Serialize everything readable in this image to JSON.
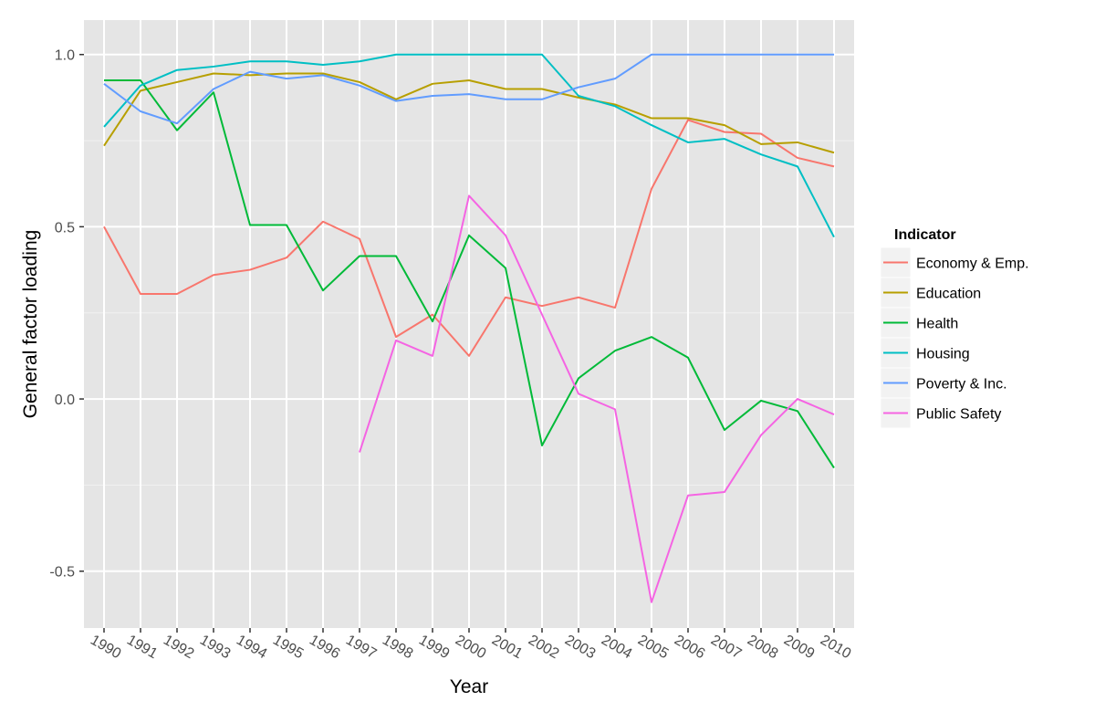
{
  "chart_data": {
    "type": "line",
    "title": "",
    "xlabel": "Year",
    "ylabel": "General factor loading",
    "x": [
      "1990",
      "1991",
      "1992",
      "1993",
      "1994",
      "1995",
      "1996",
      "1997",
      "1998",
      "1999",
      "2000",
      "2001",
      "2002",
      "2003",
      "2004",
      "2005",
      "2006",
      "2007",
      "2008",
      "2009",
      "2010"
    ],
    "xlim": [
      1989.45,
      2010.55
    ],
    "ylim": [
      -0.665,
      1.1
    ],
    "yticks": [
      -0.5,
      0.0,
      0.5,
      1.0
    ],
    "ytick_labels": [
      "-0.5",
      "0.0",
      "0.5",
      "1.0"
    ],
    "grid": true,
    "legend": {
      "title": "Indicator",
      "position": "right"
    },
    "series": [
      {
        "name": "Economy & Emp.",
        "color": "#F8766D",
        "values": [
          0.5,
          0.305,
          0.305,
          0.36,
          0.375,
          0.41,
          0.515,
          0.465,
          0.18,
          0.245,
          0.125,
          0.295,
          0.27,
          0.295,
          0.265,
          0.61,
          0.81,
          0.775,
          0.77,
          0.7,
          0.675
        ]
      },
      {
        "name": "Education",
        "color": "#B79F00",
        "values": [
          0.735,
          0.895,
          0.92,
          0.945,
          0.94,
          0.945,
          0.945,
          0.92,
          0.87,
          0.915,
          0.925,
          0.9,
          0.9,
          0.875,
          0.855,
          0.815,
          0.815,
          0.795,
          0.74,
          0.745,
          0.715
        ]
      },
      {
        "name": "Health",
        "color": "#00BA38",
        "values": [
          0.925,
          0.925,
          0.78,
          0.89,
          0.505,
          0.505,
          0.315,
          0.415,
          0.415,
          0.225,
          0.475,
          0.38,
          -0.135,
          0.06,
          0.14,
          0.18,
          0.12,
          -0.09,
          -0.005,
          -0.035,
          -0.2
        ]
      },
      {
        "name": "Housing",
        "color": "#00BFC4",
        "values": [
          0.79,
          0.91,
          0.955,
          0.965,
          0.98,
          0.98,
          0.97,
          0.98,
          1.0,
          1.0,
          1.0,
          1.0,
          1.0,
          0.88,
          0.85,
          0.795,
          0.745,
          0.755,
          0.71,
          0.675,
          0.47
        ]
      },
      {
        "name": "Poverty & Inc.",
        "color": "#619CFF",
        "values": [
          0.915,
          0.835,
          0.8,
          0.9,
          0.95,
          0.93,
          0.94,
          0.91,
          0.865,
          0.88,
          0.885,
          0.87,
          0.87,
          0.905,
          0.93,
          1.0,
          1.0,
          1.0,
          1.0,
          1.0,
          1.0
        ]
      },
      {
        "name": "Public Safety",
        "color": "#F564E3",
        "values": [
          null,
          null,
          null,
          null,
          null,
          null,
          null,
          -0.155,
          0.17,
          0.125,
          0.59,
          0.475,
          0.245,
          0.015,
          -0.03,
          -0.59,
          -0.28,
          -0.27,
          -0.105,
          0.0,
          -0.045
        ]
      }
    ]
  },
  "colors": {
    "panel_background": "#E5E5E5",
    "grid_major": "#FFFFFF",
    "grid_minor": "#F2F2F2",
    "legend_key_background": "#F2F2F2"
  }
}
